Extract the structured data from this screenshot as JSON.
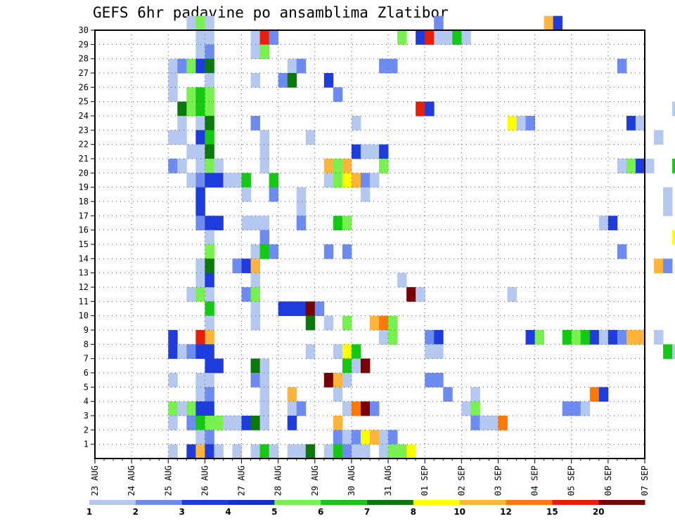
{
  "chart_data": {
    "type": "heatmap",
    "title": "GEFS 6hr padavine po ansamblima Zlatibor",
    "xlabel": "",
    "ylabel": "",
    "x_ticks": [
      "23 AUG",
      "24 AUG",
      "25 AUG",
      "26 AUG",
      "27 AUG",
      "28 AUG",
      "29 AUG",
      "30 AUG",
      "31 AUG",
      "01 SEP",
      "02 SEP",
      "03 SEP",
      "04 SEP",
      "05 SEP",
      "06 SEP",
      "07 SEP"
    ],
    "y_ticks": [
      1,
      2,
      3,
      4,
      5,
      6,
      7,
      8,
      9,
      10,
      11,
      12,
      13,
      14,
      15,
      16,
      17,
      18,
      19,
      20,
      21,
      22,
      23,
      24,
      25,
      26,
      27,
      28,
      29,
      30
    ],
    "x_range": [
      "23 AUG 00Z",
      "07 SEP 00Z"
    ],
    "y_range": [
      0,
      30
    ],
    "time_step_hours": 6,
    "grid": true,
    "colorbar": {
      "position": "bottom",
      "labels": [
        "1",
        "2",
        "3",
        "4",
        "5",
        "6",
        "7",
        "8",
        "10",
        "12",
        "15",
        "20"
      ],
      "bounds": [
        1,
        2,
        3,
        4,
        5,
        6,
        7,
        8,
        10,
        12,
        15,
        20
      ],
      "colors": [
        "#b4c8f0",
        "#6e8cf0",
        "#1e3cdc",
        "#1432c8",
        "#78f050",
        "#14c814",
        "#0a780a",
        "#ffff00",
        "#ffb43c",
        "#ff780a",
        "#e61e0a",
        "#780000"
      ]
    },
    "cells": [
      [
        10,
        30,
        1
      ],
      [
        11,
        30,
        5
      ],
      [
        12,
        30,
        1
      ],
      [
        37,
        30,
        2
      ],
      [
        49,
        30,
        10
      ],
      [
        50,
        30,
        3
      ],
      [
        11,
        29,
        1
      ],
      [
        12,
        29,
        1
      ],
      [
        17,
        29,
        1
      ],
      [
        18,
        29,
        15
      ],
      [
        19,
        29,
        2
      ],
      [
        33,
        29,
        5
      ],
      [
        35,
        29,
        3
      ],
      [
        36,
        29,
        15
      ],
      [
        37,
        29,
        1
      ],
      [
        38,
        29,
        1
      ],
      [
        39,
        29,
        6
      ],
      [
        40,
        29,
        1
      ],
      [
        69,
        29,
        3
      ],
      [
        11,
        28,
        1
      ],
      [
        12,
        28,
        2
      ],
      [
        17,
        28,
        1
      ],
      [
        18,
        28,
        5
      ],
      [
        8,
        27,
        1
      ],
      [
        9,
        27,
        2
      ],
      [
        10,
        27,
        5
      ],
      [
        11,
        27,
        3
      ],
      [
        12,
        27,
        7
      ],
      [
        21,
        27,
        1
      ],
      [
        22,
        27,
        2
      ],
      [
        31,
        27,
        2
      ],
      [
        32,
        27,
        2
      ],
      [
        57,
        27,
        2
      ],
      [
        70,
        27,
        1
      ],
      [
        8,
        26,
        1
      ],
      [
        12,
        26,
        1
      ],
      [
        17,
        26,
        1
      ],
      [
        20,
        26,
        2
      ],
      [
        21,
        26,
        7
      ],
      [
        25,
        26,
        3
      ],
      [
        8,
        25,
        1
      ],
      [
        10,
        25,
        5
      ],
      [
        11,
        25,
        6
      ],
      [
        12,
        25,
        5
      ],
      [
        26,
        25,
        2
      ],
      [
        9,
        24,
        7
      ],
      [
        10,
        24,
        5
      ],
      [
        11,
        24,
        6
      ],
      [
        12,
        24,
        5
      ],
      [
        35,
        24,
        15
      ],
      [
        36,
        24,
        3
      ],
      [
        63,
        24,
        1
      ],
      [
        64,
        24,
        2
      ],
      [
        9,
        23,
        1
      ],
      [
        11,
        23,
        1
      ],
      [
        12,
        23,
        7
      ],
      [
        17,
        23,
        2
      ],
      [
        28,
        23,
        1
      ],
      [
        45,
        23,
        8
      ],
      [
        46,
        23,
        1
      ],
      [
        47,
        23,
        2
      ],
      [
        58,
        23,
        3
      ],
      [
        59,
        23,
        1
      ],
      [
        8,
        22,
        1
      ],
      [
        9,
        22,
        1
      ],
      [
        11,
        22,
        3
      ],
      [
        12,
        22,
        6
      ],
      [
        18,
        22,
        1
      ],
      [
        23,
        22,
        1
      ],
      [
        61,
        22,
        1
      ],
      [
        10,
        21,
        1
      ],
      [
        11,
        21,
        1
      ],
      [
        12,
        21,
        7
      ],
      [
        18,
        21,
        1
      ],
      [
        28,
        21,
        3
      ],
      [
        29,
        21,
        1
      ],
      [
        30,
        21,
        1
      ],
      [
        31,
        21,
        3
      ],
      [
        65,
        21,
        1
      ],
      [
        66,
        21,
        1
      ],
      [
        8,
        20,
        2
      ],
      [
        9,
        20,
        1
      ],
      [
        11,
        20,
        1
      ],
      [
        12,
        20,
        5
      ],
      [
        13,
        20,
        1
      ],
      [
        18,
        20,
        1
      ],
      [
        25,
        20,
        10
      ],
      [
        26,
        20,
        5
      ],
      [
        27,
        20,
        10
      ],
      [
        31,
        20,
        5
      ],
      [
        57,
        20,
        1
      ],
      [
        58,
        20,
        5
      ],
      [
        59,
        20,
        3
      ],
      [
        60,
        20,
        1
      ],
      [
        63,
        20,
        6
      ],
      [
        64,
        20,
        6
      ],
      [
        65,
        20,
        10
      ],
      [
        66,
        20,
        5
      ],
      [
        10,
        19,
        1
      ],
      [
        11,
        19,
        2
      ],
      [
        12,
        19,
        3
      ],
      [
        13,
        19,
        3
      ],
      [
        14,
        19,
        1
      ],
      [
        15,
        19,
        1
      ],
      [
        16,
        19,
        6
      ],
      [
        19,
        19,
        6
      ],
      [
        25,
        19,
        1
      ],
      [
        26,
        19,
        5
      ],
      [
        27,
        19,
        8
      ],
      [
        28,
        19,
        10
      ],
      [
        29,
        19,
        2
      ],
      [
        30,
        19,
        1
      ],
      [
        64,
        19,
        2
      ],
      [
        65,
        19,
        1
      ],
      [
        11,
        18,
        3
      ],
      [
        16,
        18,
        1
      ],
      [
        19,
        18,
        2
      ],
      [
        22,
        18,
        1
      ],
      [
        29,
        18,
        1
      ],
      [
        62,
        18,
        1
      ],
      [
        11,
        17,
        3
      ],
      [
        22,
        17,
        1
      ],
      [
        62,
        17,
        1
      ],
      [
        11,
        16,
        2
      ],
      [
        12,
        16,
        3
      ],
      [
        13,
        16,
        3
      ],
      [
        16,
        16,
        1
      ],
      [
        17,
        16,
        1
      ],
      [
        18,
        16,
        1
      ],
      [
        22,
        16,
        2
      ],
      [
        26,
        16,
        6
      ],
      [
        27,
        16,
        5
      ],
      [
        55,
        16,
        1
      ],
      [
        56,
        16,
        3
      ],
      [
        67,
        16,
        2
      ],
      [
        68,
        16,
        7
      ],
      [
        69,
        16,
        2
      ],
      [
        12,
        15,
        1
      ],
      [
        18,
        15,
        2
      ],
      [
        63,
        15,
        8
      ],
      [
        64,
        15,
        10
      ],
      [
        65,
        15,
        2
      ],
      [
        12,
        14,
        5
      ],
      [
        17,
        14,
        1
      ],
      [
        18,
        14,
        6
      ],
      [
        19,
        14,
        2
      ],
      [
        25,
        14,
        2
      ],
      [
        27,
        14,
        2
      ],
      [
        57,
        14,
        2
      ],
      [
        11,
        13,
        1
      ],
      [
        12,
        13,
        7
      ],
      [
        15,
        13,
        2
      ],
      [
        16,
        13,
        3
      ],
      [
        17,
        13,
        10
      ],
      [
        61,
        13,
        10
      ],
      [
        62,
        13,
        2
      ],
      [
        64,
        13,
        3
      ],
      [
        65,
        13,
        2
      ],
      [
        11,
        12,
        1
      ],
      [
        12,
        12,
        3
      ],
      [
        17,
        12,
        1
      ],
      [
        33,
        12,
        1
      ],
      [
        10,
        11,
        1
      ],
      [
        11,
        11,
        5
      ],
      [
        12,
        11,
        1
      ],
      [
        16,
        11,
        2
      ],
      [
        17,
        11,
        5
      ],
      [
        34,
        11,
        20
      ],
      [
        35,
        11,
        1
      ],
      [
        45,
        11,
        1
      ],
      [
        65,
        11,
        1
      ],
      [
        12,
        10,
        6
      ],
      [
        17,
        10,
        1
      ],
      [
        20,
        10,
        3
      ],
      [
        21,
        10,
        3
      ],
      [
        22,
        10,
        3
      ],
      [
        23,
        10,
        20
      ],
      [
        24,
        10,
        2
      ],
      [
        12,
        9,
        1
      ],
      [
        17,
        9,
        1
      ],
      [
        23,
        9,
        7
      ],
      [
        25,
        9,
        1
      ],
      [
        27,
        9,
        5
      ],
      [
        30,
        9,
        10
      ],
      [
        31,
        9,
        12
      ],
      [
        32,
        9,
        5
      ],
      [
        8,
        8,
        3
      ],
      [
        11,
        8,
        15
      ],
      [
        12,
        8,
        10
      ],
      [
        31,
        8,
        1
      ],
      [
        32,
        8,
        5
      ],
      [
        36,
        8,
        2
      ],
      [
        37,
        8,
        3
      ],
      [
        47,
        8,
        3
      ],
      [
        48,
        8,
        5
      ],
      [
        51,
        8,
        6
      ],
      [
        52,
        8,
        5
      ],
      [
        53,
        8,
        6
      ],
      [
        54,
        8,
        3
      ],
      [
        55,
        8,
        1
      ],
      [
        56,
        8,
        3
      ],
      [
        57,
        8,
        2
      ],
      [
        58,
        8,
        10
      ],
      [
        59,
        8,
        10
      ],
      [
        61,
        8,
        1
      ],
      [
        69,
        8,
        1
      ],
      [
        8,
        7,
        3
      ],
      [
        9,
        7,
        1
      ],
      [
        10,
        7,
        2
      ],
      [
        11,
        7,
        3
      ],
      [
        12,
        7,
        3
      ],
      [
        23,
        7,
        1
      ],
      [
        26,
        7,
        1
      ],
      [
        27,
        7,
        8
      ],
      [
        28,
        7,
        6
      ],
      [
        36,
        7,
        1
      ],
      [
        37,
        7,
        1
      ],
      [
        62,
        7,
        6
      ],
      [
        63,
        7,
        1
      ],
      [
        66,
        7,
        6
      ],
      [
        70,
        7,
        2
      ],
      [
        12,
        6,
        3
      ],
      [
        13,
        6,
        3
      ],
      [
        17,
        6,
        7
      ],
      [
        18,
        6,
        1
      ],
      [
        27,
        6,
        6
      ],
      [
        28,
        6,
        1
      ],
      [
        29,
        6,
        20
      ],
      [
        8,
        5,
        1
      ],
      [
        11,
        5,
        1
      ],
      [
        12,
        5,
        1
      ],
      [
        17,
        5,
        2
      ],
      [
        18,
        5,
        1
      ],
      [
        25,
        5,
        20
      ],
      [
        26,
        5,
        10
      ],
      [
        27,
        5,
        1
      ],
      [
        36,
        5,
        2
      ],
      [
        37,
        5,
        2
      ],
      [
        11,
        4,
        1
      ],
      [
        12,
        4,
        2
      ],
      [
        18,
        4,
        1
      ],
      [
        21,
        4,
        10
      ],
      [
        26,
        4,
        1
      ],
      [
        38,
        4,
        2
      ],
      [
        41,
        4,
        1
      ],
      [
        54,
        4,
        12
      ],
      [
        55,
        4,
        3
      ],
      [
        8,
        3,
        5
      ],
      [
        9,
        3,
        1
      ],
      [
        10,
        3,
        5
      ],
      [
        11,
        3,
        3
      ],
      [
        12,
        3,
        3
      ],
      [
        18,
        3,
        1
      ],
      [
        21,
        3,
        1
      ],
      [
        22,
        3,
        2
      ],
      [
        27,
        3,
        1
      ],
      [
        28,
        3,
        12
      ],
      [
        29,
        3,
        20
      ],
      [
        30,
        3,
        2
      ],
      [
        40,
        3,
        1
      ],
      [
        41,
        3,
        5
      ],
      [
        51,
        3,
        2
      ],
      [
        52,
        3,
        2
      ],
      [
        53,
        3,
        1
      ],
      [
        8,
        2,
        1
      ],
      [
        10,
        2,
        2
      ],
      [
        11,
        2,
        6
      ],
      [
        12,
        2,
        5
      ],
      [
        13,
        2,
        5
      ],
      [
        14,
        2,
        1
      ],
      [
        15,
        2,
        1
      ],
      [
        16,
        2,
        3
      ],
      [
        17,
        2,
        7
      ],
      [
        18,
        2,
        1
      ],
      [
        21,
        2,
        3
      ],
      [
        26,
        2,
        10
      ],
      [
        41,
        2,
        2
      ],
      [
        42,
        2,
        1
      ],
      [
        43,
        2,
        1
      ],
      [
        44,
        2,
        12
      ],
      [
        11,
        1,
        1
      ],
      [
        12,
        1,
        2
      ],
      [
        26,
        1,
        2
      ],
      [
        27,
        1,
        1
      ],
      [
        28,
        1,
        2
      ],
      [
        29,
        1,
        8
      ],
      [
        30,
        1,
        10
      ],
      [
        31,
        1,
        1
      ],
      [
        32,
        1,
        2
      ],
      [
        8,
        0,
        1
      ],
      [
        10,
        0,
        3
      ],
      [
        11,
        0,
        10
      ],
      [
        12,
        0,
        3
      ],
      [
        13,
        0,
        1
      ],
      [
        15,
        0,
        1
      ],
      [
        17,
        0,
        1
      ],
      [
        18,
        0,
        6
      ],
      [
        19,
        0,
        1
      ],
      [
        21,
        0,
        1
      ],
      [
        22,
        0,
        1
      ],
      [
        23,
        0,
        7
      ],
      [
        25,
        0,
        1
      ],
      [
        26,
        0,
        6
      ],
      [
        27,
        0,
        2
      ],
      [
        28,
        0,
        1
      ],
      [
        29,
        0,
        1
      ],
      [
        31,
        0,
        1
      ],
      [
        32,
        0,
        5
      ],
      [
        33,
        0,
        5
      ],
      [
        34,
        0,
        8
      ],
      [
        65,
        0,
        10
      ],
      [
        66,
        0,
        15
      ]
    ]
  }
}
